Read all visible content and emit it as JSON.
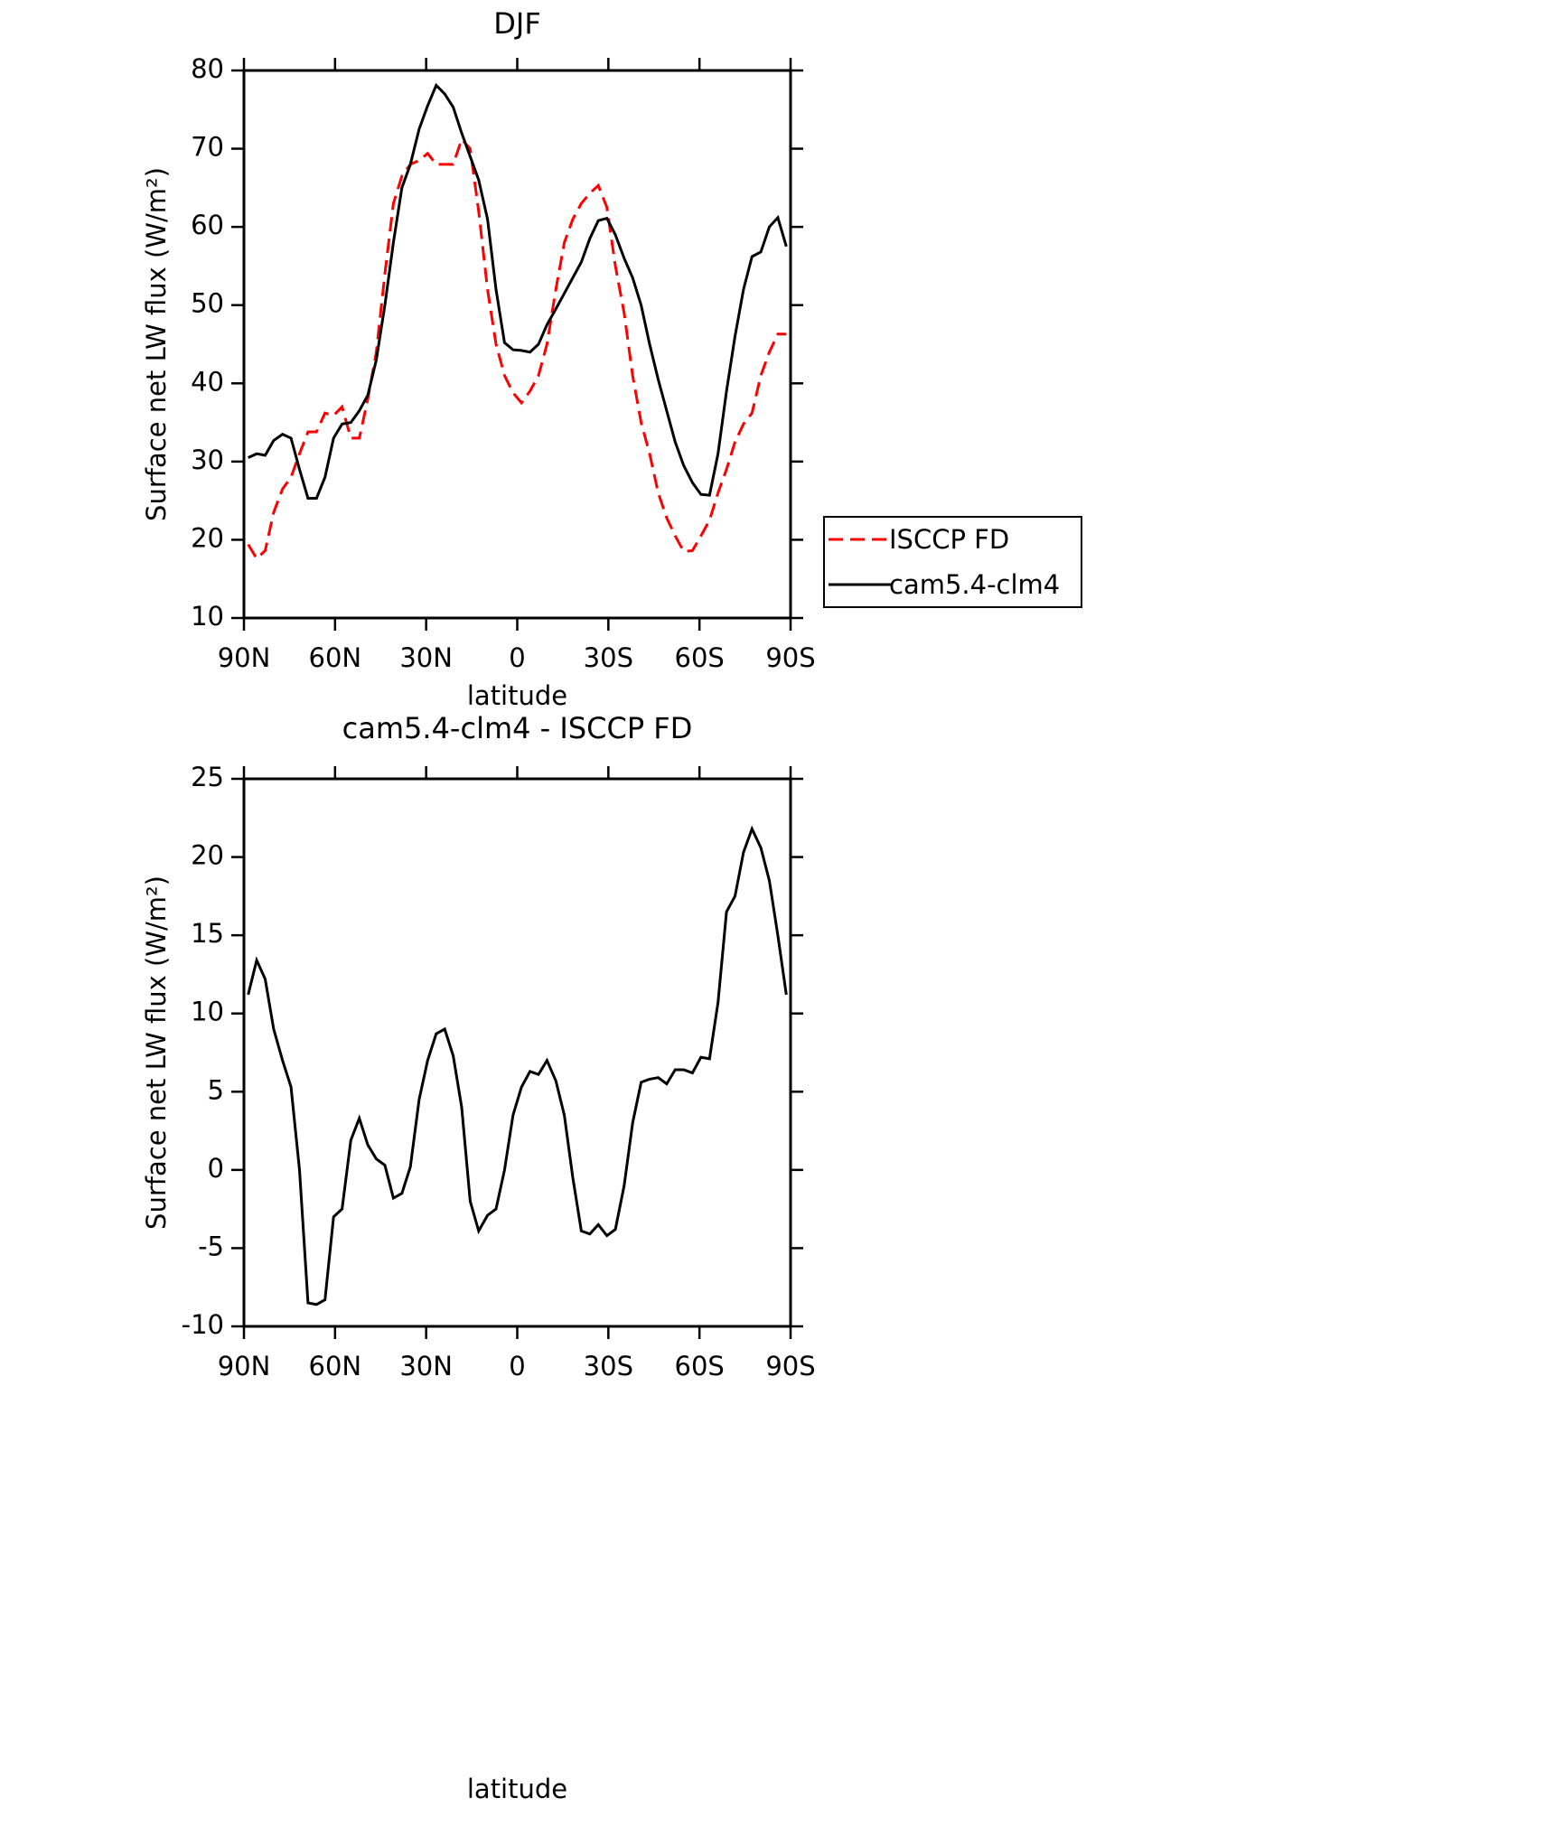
{
  "chart_data": [
    {
      "type": "line",
      "title": "DJF",
      "xlabel": "latitude",
      "ylabel": "Surface net LW flux (W/m²)",
      "x": [
        88.6,
        85.8,
        83.0,
        80.2,
        77.3,
        74.5,
        71.7,
        68.9,
        66.1,
        63.3,
        60.5,
        57.7,
        54.8,
        52.0,
        49.2,
        46.4,
        43.6,
        40.8,
        38.0,
        35.2,
        32.3,
        29.5,
        26.7,
        23.9,
        21.1,
        18.3,
        15.5,
        12.7,
        9.8,
        7.0,
        4.2,
        1.4,
        -1.4,
        -4.2,
        -7.0,
        -9.8,
        -12.7,
        -15.5,
        -18.3,
        -21.1,
        -23.9,
        -26.7,
        -29.5,
        -32.3,
        -35.2,
        -38.0,
        -40.8,
        -43.6,
        -46.4,
        -49.2,
        -52.0,
        -54.8,
        -57.7,
        -60.5,
        -63.3,
        -66.1,
        -68.9,
        -71.7,
        -74.5,
        -77.3,
        -80.2,
        -83.0,
        -85.8,
        -88.6
      ],
      "series": [
        {
          "name": "ISCCP FD",
          "color": "#ff0000",
          "dashed": true,
          "values": [
            19.4,
            17.6,
            18.6,
            23.5,
            26.5,
            28,
            31,
            33.8,
            33.8,
            36.2,
            35.9,
            37,
            33,
            33,
            38,
            44,
            54,
            63,
            66.5,
            68,
            68.5,
            69.4,
            68,
            68,
            68,
            71.2,
            70,
            62,
            52,
            45,
            41,
            38.8,
            37.5,
            39,
            41,
            45,
            52,
            58,
            61,
            63,
            64.3,
            65.3,
            62.5,
            55,
            49,
            41,
            35,
            31,
            26,
            22.8,
            20.5,
            18.5,
            18.6,
            20.5,
            22.5,
            26,
            29,
            32.5,
            34.8,
            36.2,
            41,
            44,
            46.3,
            46.3
          ]
        },
        {
          "name": "cam5.4-clm4",
          "color": "#000000",
          "dashed": false,
          "values": [
            30.5,
            31,
            30.8,
            32.7,
            33.5,
            33,
            29,
            25.3,
            25.3,
            28,
            33,
            34.8,
            35,
            36.5,
            38.5,
            43,
            50,
            58,
            65,
            68,
            72.5,
            75.5,
            78.1,
            77,
            75.3,
            72,
            69,
            66,
            61,
            52,
            45.2,
            44.3,
            44.2,
            44,
            45,
            47.5,
            49.5,
            51.5,
            53.5,
            55.5,
            58.5,
            60.8,
            61.1,
            59,
            56,
            53.5,
            50,
            45,
            40.5,
            36.5,
            32.5,
            29.5,
            27.3,
            25.8,
            25.7,
            31,
            39,
            46,
            52,
            56.2,
            56.8,
            60,
            61.2,
            57.5
          ]
        }
      ],
      "xlim": [
        90,
        -90
      ],
      "xticks": [
        {
          "value": 90,
          "label": "90N"
        },
        {
          "value": 60,
          "label": "60N"
        },
        {
          "value": 30,
          "label": "30N"
        },
        0,
        {
          "value": -30,
          "label": "30S"
        },
        {
          "value": -60,
          "label": "60S"
        },
        {
          "value": -90,
          "label": "90S"
        }
      ],
      "ylim": [
        10,
        80
      ],
      "yticks": [
        10,
        20,
        30,
        40,
        50,
        60,
        70,
        80
      ],
      "legend": "right"
    },
    {
      "type": "line",
      "title": "cam5.4-clm4 - ISCCP FD",
      "xlabel": "latitude",
      "ylabel": "Surface net LW flux (W/m²)",
      "x": [
        88.6,
        85.8,
        83.0,
        80.2,
        77.3,
        74.5,
        71.7,
        68.9,
        66.1,
        63.3,
        60.5,
        57.7,
        54.8,
        52.0,
        49.2,
        46.4,
        43.6,
        40.8,
        38.0,
        35.2,
        32.3,
        29.5,
        26.7,
        23.9,
        21.1,
        18.3,
        15.5,
        12.7,
        9.8,
        7.0,
        4.2,
        1.4,
        -1.4,
        -4.2,
        -7.0,
        -9.8,
        -12.7,
        -15.5,
        -18.3,
        -21.1,
        -23.9,
        -26.7,
        -29.5,
        -32.3,
        -35.2,
        -38.0,
        -40.8,
        -43.6,
        -46.4,
        -49.2,
        -52.0,
        -54.8,
        -57.7,
        -60.5,
        -63.3,
        -66.1,
        -68.9,
        -71.7,
        -74.5,
        -77.3,
        -80.2,
        -83.0,
        -85.8,
        -88.6
      ],
      "series": [
        {
          "color": "#000000",
          "dashed": false,
          "values": [
            11.2,
            13.4,
            12.2,
            9,
            7,
            5.3,
            0,
            -8.5,
            -8.6,
            -8.3,
            -3,
            -2.5,
            1.9,
            3.3,
            1.6,
            0.7,
            0.3,
            -1.8,
            -1.5,
            0.2,
            4.5,
            7,
            8.7,
            9,
            7.3,
            4,
            -2,
            -3.9,
            -2.9,
            -2.5,
            0,
            3.5,
            5.3,
            6.3,
            6.1,
            7,
            5.7,
            3.5,
            -0.5,
            -3.9,
            -4.1,
            -3.5,
            -4.2,
            -3.8,
            -1,
            3,
            5.6,
            5.8,
            5.9,
            5.5,
            6.4,
            6.4,
            6.2,
            7.2,
            7.1,
            10.7,
            16.5,
            17.5,
            20.3,
            21.8,
            20.6,
            18.5,
            15,
            11.2
          ]
        }
      ],
      "xlim": [
        90,
        -90
      ],
      "xticks": [
        {
          "value": 90,
          "label": "90N"
        },
        {
          "value": 60,
          "label": "60N"
        },
        {
          "value": 30,
          "label": "30N"
        },
        0,
        {
          "value": -30,
          "label": "30S"
        },
        {
          "value": -60,
          "label": "60S"
        },
        {
          "value": -90,
          "label": "90S"
        }
      ],
      "ylim": [
        -10,
        25
      ],
      "yticks": [
        -10,
        -5,
        0,
        5,
        10,
        15,
        20,
        25
      ]
    }
  ]
}
